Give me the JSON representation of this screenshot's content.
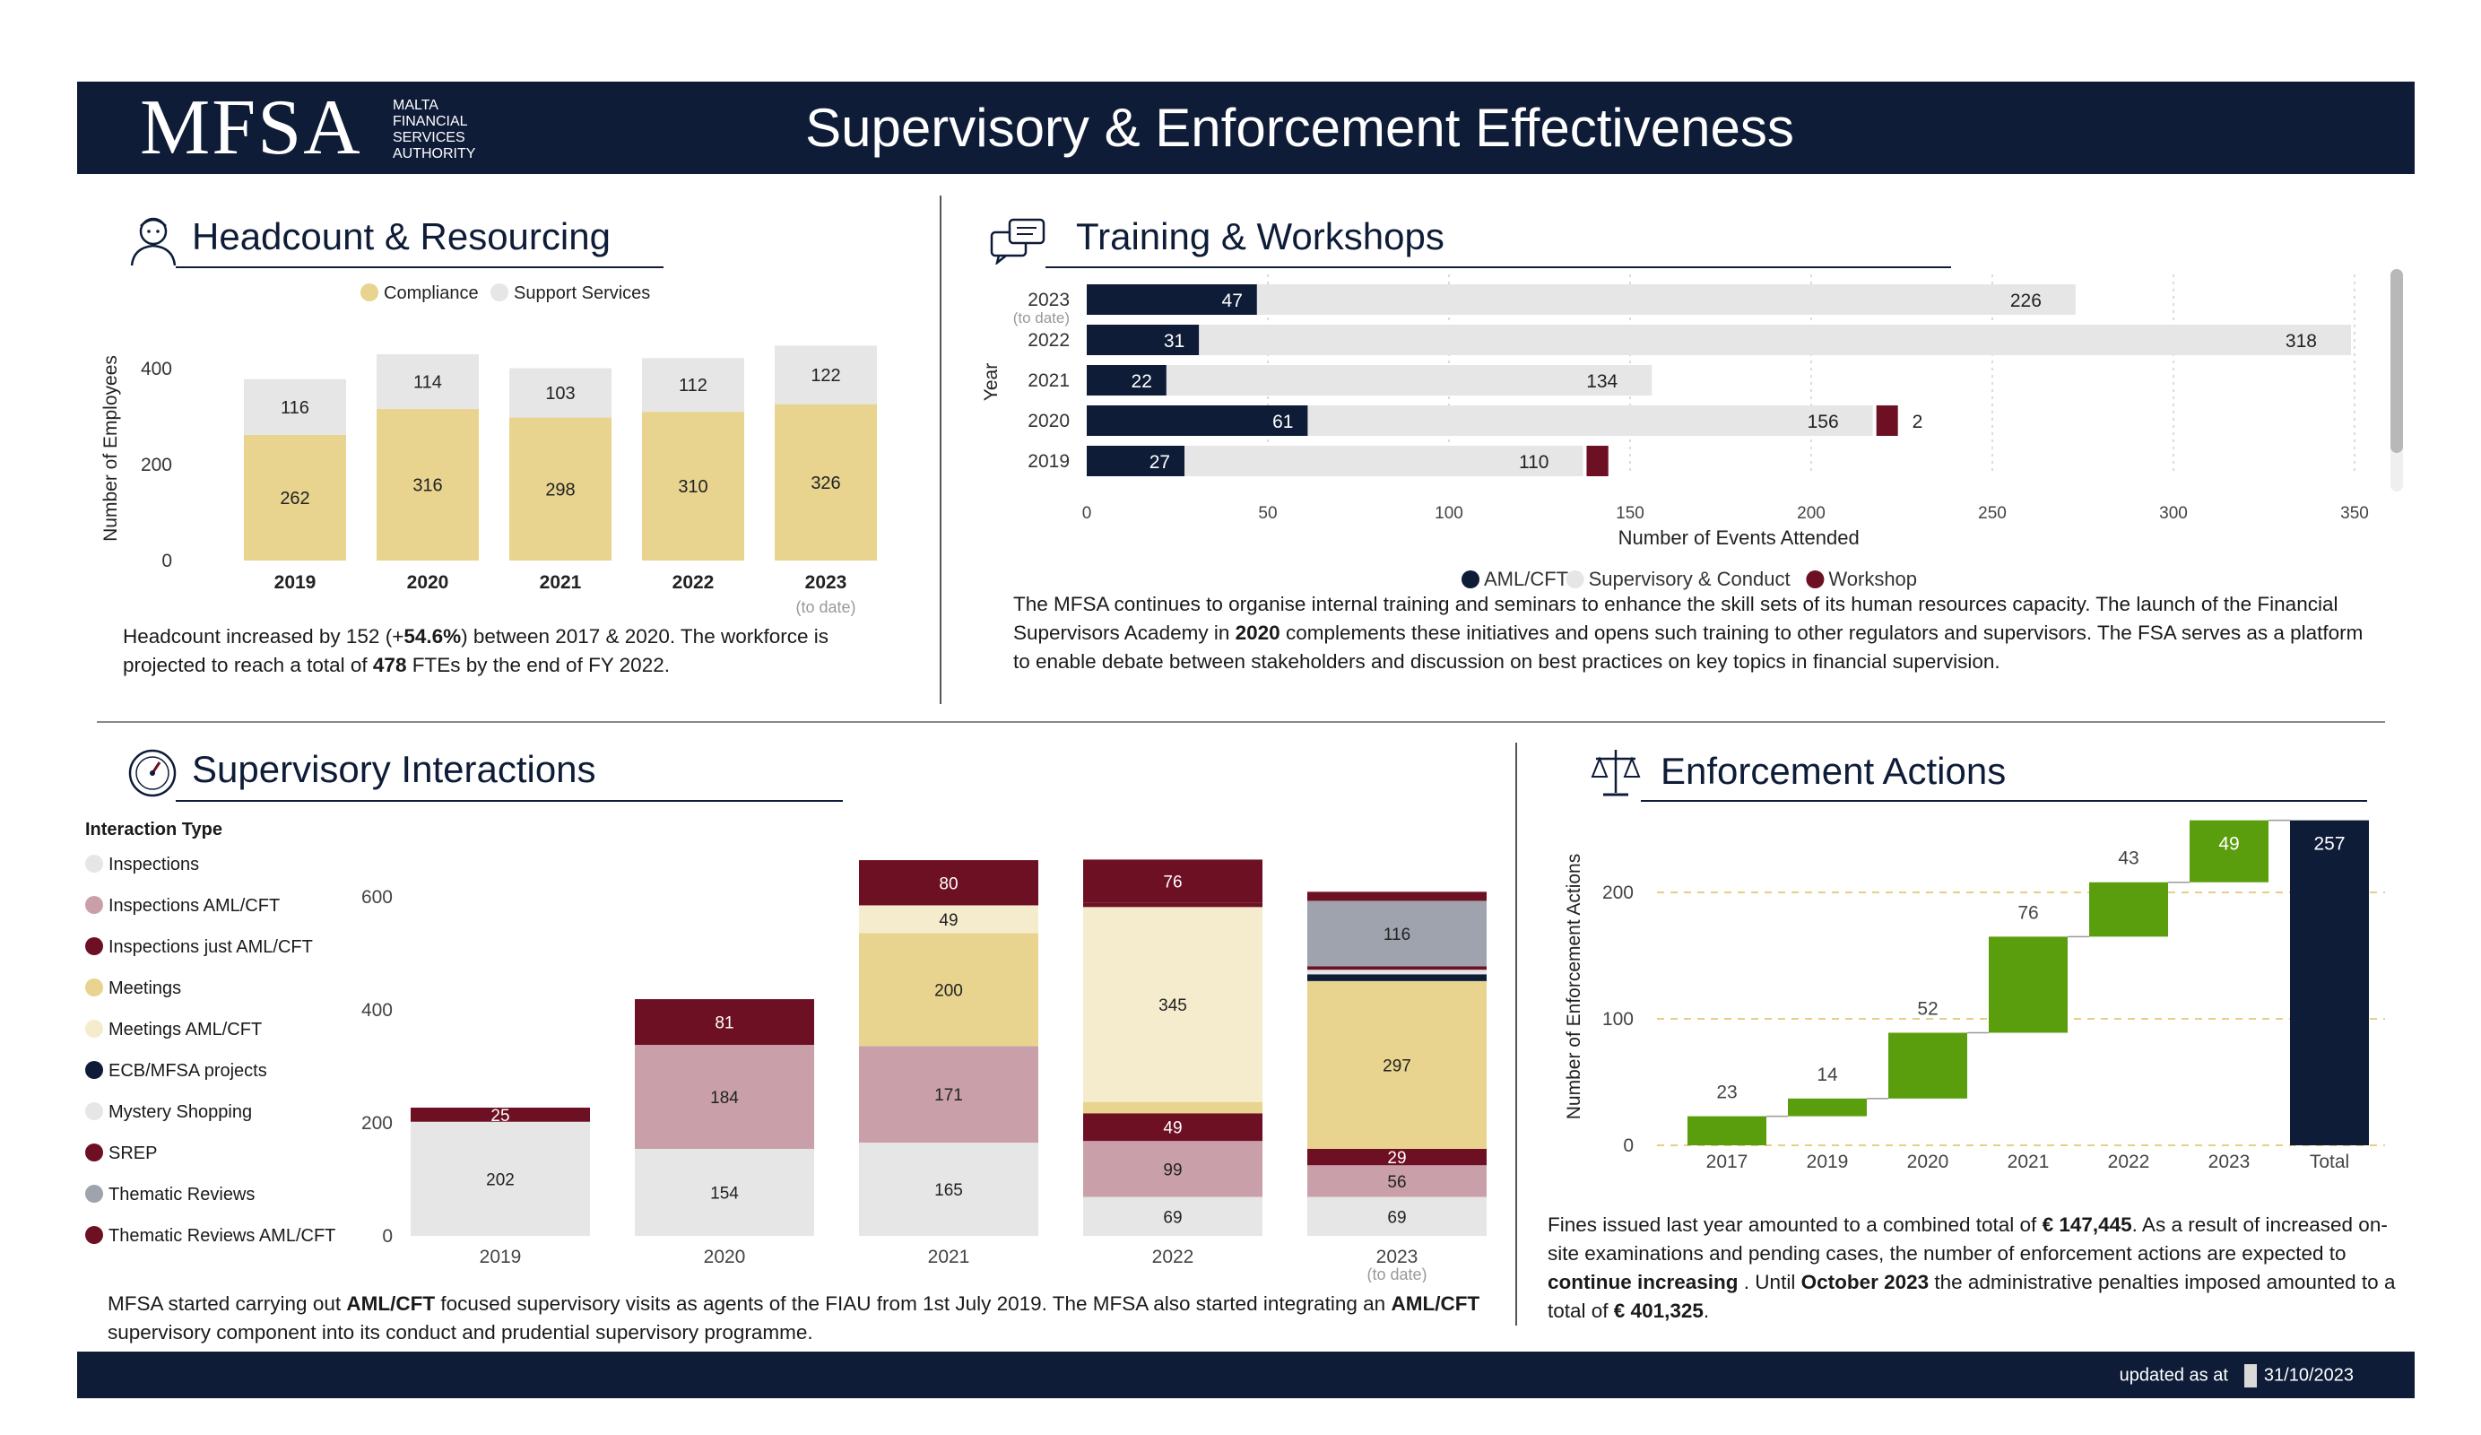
{
  "header": {
    "logo": "MFSA",
    "logo_sub": [
      "MALTA",
      "FINANCIAL",
      "SERVICES",
      "AUTHORITY"
    ],
    "title": "Supervisory & Enforcement Effectiveness"
  },
  "headcount": {
    "title": "Headcount & Resourcing",
    "icon": "person-icon",
    "text_parts": [
      "Headcount increased by 152 (+",
      "54.6%",
      ") between 2017 & 2020. The workforce is projected to reach a total of ",
      "478",
      " FTEs by the end of FY 2022."
    ]
  },
  "training": {
    "title": "Training & Workshops",
    "icon": "chat-bubbles-icon",
    "text_parts": [
      "The MFSA continues to organise internal training and seminars to enhance the skill sets of its human resources capacity. The launch of the Financial Supervisors Academy in ",
      "2020",
      " complements these initiatives and opens such training to other regulators and supervisors. The FSA serves as a platform to enable debate between stakeholders and discussion on best practices on key topics in financial supervision."
    ]
  },
  "interactions": {
    "title": "Supervisory Interactions",
    "icon": "gauge-icon",
    "legend_title": "Interaction Type",
    "text_parts": [
      "MFSA started carrying out ",
      "AML/CFT",
      " focused supervisory visits as agents of the FIAU from 1st July 2019. The MFSA also started integrating an ",
      "AML/CFT",
      " supervisory component into its conduct and prudential supervisory programme."
    ]
  },
  "enforcement": {
    "title": "Enforcement Actions",
    "icon": "scales-icon",
    "text_parts": [
      "Fines issued last year amounted to a combined total of ",
      "€ 147,445",
      ". As a result of increased on-site examinations and pending cases, the number of enforcement actions are expected to ",
      "continue increasing",
      " . Until ",
      "October 2023",
      " the administrative penalties imposed amounted to a total of ",
      "€ 401,325",
      "."
    ]
  },
  "footer": {
    "label": "updated as at",
    "date": "31/10/2023"
  },
  "colors": {
    "navy": "#0e1c38",
    "compliance": "#e8d48f",
    "support": "#e6e6e6",
    "workshop": "#6e1023",
    "waterfall_green": "#5a9e0e"
  },
  "chart_data": [
    {
      "id": "headcount",
      "type": "bar",
      "stacked": true,
      "categories": [
        "2019",
        "2020",
        "2021",
        "2022",
        "2023"
      ],
      "category_notes": {
        "2023": "(to date)"
      },
      "series": [
        {
          "name": "Compliance",
          "color": "#e8d48f",
          "values": [
            262,
            316,
            298,
            310,
            326
          ]
        },
        {
          "name": "Support Services",
          "color": "#e6e6e6",
          "values": [
            116,
            114,
            103,
            112,
            122
          ]
        }
      ],
      "ylabel": "Number of Employees",
      "yticks": [
        0,
        200,
        400
      ],
      "ylim": [
        0,
        470
      ],
      "legend": "top"
    },
    {
      "id": "training",
      "type": "bar",
      "orientation": "horizontal",
      "stacked": true,
      "categories": [
        "2023",
        "2022",
        "2021",
        "2020",
        "2019"
      ],
      "category_notes": {
        "2023": "(to date)"
      },
      "series": [
        {
          "name": "AML/CFT",
          "color": "#0e1c38",
          "values": [
            47,
            31,
            22,
            61,
            27
          ]
        },
        {
          "name": "Supervisory & Conduct",
          "color": "#e6e6e6",
          "values": [
            226,
            318,
            134,
            156,
            110
          ]
        },
        {
          "name": "Workshop",
          "color": "#6e1023",
          "values": [
            null,
            null,
            null,
            2,
            6
          ]
        }
      ],
      "xlabel": "Number of Events Attended",
      "ylabel": "Year",
      "xticks": [
        0,
        50,
        100,
        150,
        200,
        250,
        300,
        350
      ],
      "xlim": [
        0,
        350
      ],
      "legend": "bottom"
    },
    {
      "id": "interactions",
      "type": "bar",
      "stacked": true,
      "categories": [
        "2019",
        "2020",
        "2021",
        "2022",
        "2023"
      ],
      "category_notes": {
        "2023": "(to date)"
      },
      "series": [
        {
          "name": "Inspections",
          "color": "#e6e6e6",
          "values": [
            202,
            154,
            165,
            69,
            69
          ]
        },
        {
          "name": "Inspections  AML/CFT",
          "color": "#c9a0aa",
          "values": [
            0,
            184,
            171,
            99,
            56
          ]
        },
        {
          "name": "Inspections just AML/CFT",
          "color": "#6e1023",
          "values": [
            0,
            0,
            0,
            49,
            29
          ]
        },
        {
          "name": "Meetings",
          "color": "#e8d48f",
          "values": [
            0,
            0,
            200,
            20,
            297
          ]
        },
        {
          "name": "Meetings  AML/CFT",
          "color": "#f5ecce",
          "values": [
            0,
            0,
            49,
            345,
            0
          ]
        },
        {
          "name": "ECB/MFSA projects",
          "color": "#0e1c38",
          "values": [
            0,
            0,
            0,
            0,
            12
          ]
        },
        {
          "name": "Mystery Shopping",
          "color": "#e6e6e6",
          "values": [
            0,
            0,
            0,
            0,
            8
          ]
        },
        {
          "name": "SREP",
          "color": "#6e1023",
          "values": [
            0,
            81,
            80,
            8,
            6
          ]
        },
        {
          "name": "Thematic Reviews",
          "color": "#9ea3ae",
          "values": [
            0,
            0,
            0,
            0,
            116
          ]
        },
        {
          "name": "Thematic Reviews   AML/CFT",
          "color": "#6e1023",
          "values": [
            25,
            0,
            0,
            76,
            16
          ]
        }
      ],
      "yticks": [
        0,
        200,
        400,
        600
      ],
      "ylim": [
        0,
        700
      ],
      "legend": "left"
    },
    {
      "id": "enforcement",
      "type": "bar",
      "subtype": "waterfall",
      "categories": [
        "2017",
        "2019",
        "2020",
        "2021",
        "2022",
        "2023",
        "Total"
      ],
      "values": [
        23,
        14,
        52,
        76,
        43,
        49,
        257
      ],
      "ylabel": "Number of Enforcement Actions",
      "yticks": [
        0,
        100,
        200
      ],
      "ylim": [
        0,
        270
      ],
      "grid": "horizontal dashed"
    }
  ]
}
